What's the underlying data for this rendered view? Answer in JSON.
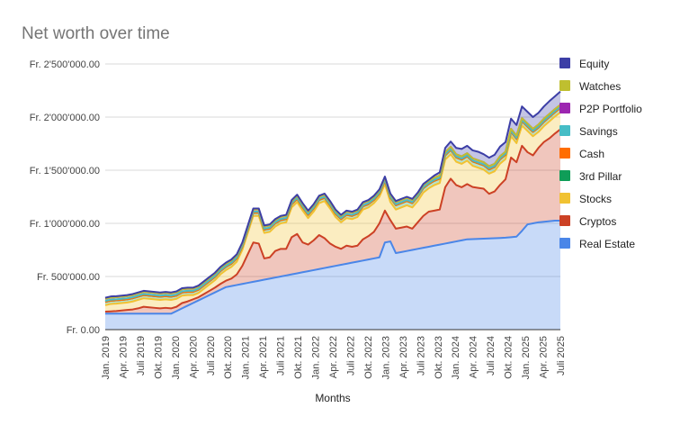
{
  "chart_data": {
    "type": "area",
    "stacked": true,
    "title": "Net worth over time",
    "xlabel": "Months",
    "ylabel": "",
    "ylim": [
      0,
      2500000
    ],
    "y_ticks": [
      {
        "value": 0,
        "label": "Fr. 0.00"
      },
      {
        "value": 500000,
        "label": "Fr. 500'000.00"
      },
      {
        "value": 1000000,
        "label": "Fr. 1'000'000.00"
      },
      {
        "value": 1500000,
        "label": "Fr. 1'500'000.00"
      },
      {
        "value": 2000000,
        "label": "Fr. 2'000'000.00"
      },
      {
        "value": 2500000,
        "label": "Fr. 2'500'000.00"
      }
    ],
    "x_tick_labels": [
      "Jan. 2019",
      "Apr. 2019",
      "Juli 2019",
      "Okt. 2019",
      "Jan. 2020",
      "Apr. 2020",
      "Juli 2020",
      "Okt. 2020",
      "Jan. 2021",
      "Apr. 2021",
      "Juli 2021",
      "Okt. 2021",
      "Jan. 2022",
      "Apr. 2022",
      "Juli 2022",
      "Okt. 2022",
      "Jan. 2023",
      "Apr. 2023",
      "Juli 2023",
      "Okt. 2023",
      "Jan. 2024",
      "Apr. 2024",
      "Juli 2024",
      "Okt. 2024",
      "Jan. 2025",
      "Apr. 2025",
      "Juli 2025"
    ],
    "grid": true,
    "legend_position": "right",
    "series": [
      {
        "name": "Real Estate",
        "color": "#4a86e8",
        "values": [
          150000,
          150000,
          150000,
          150000,
          150000,
          150000,
          150000,
          150000,
          150000,
          150000,
          150000,
          150000,
          150000,
          175000,
          200000,
          225000,
          250000,
          275000,
          300000,
          325000,
          350000,
          375000,
          400000,
          410000,
          420000,
          430000,
          440000,
          450000,
          460000,
          470000,
          480000,
          490000,
          500000,
          510000,
          520000,
          530000,
          540000,
          550000,
          560000,
          570000,
          580000,
          590000,
          600000,
          610000,
          620000,
          630000,
          640000,
          650000,
          660000,
          670000,
          680000,
          820000,
          830000,
          720000,
          730000,
          740000,
          750000,
          760000,
          770000,
          780000,
          790000,
          800000,
          810000,
          820000,
          830000,
          840000,
          850000,
          852000,
          854000,
          856000,
          858000,
          860000,
          862000,
          865000,
          870000,
          875000,
          930000,
          990000,
          1000000,
          1010000,
          1015000,
          1020000,
          1025000,
          1025000
        ]
      },
      {
        "name": "Cryptos",
        "color": "#cc4125",
        "values": [
          20000,
          22000,
          25000,
          30000,
          35000,
          40000,
          50000,
          65000,
          60000,
          55000,
          50000,
          55000,
          50000,
          40000,
          50000,
          40000,
          35000,
          30000,
          35000,
          40000,
          45000,
          55000,
          60000,
          70000,
          100000,
          170000,
          270000,
          370000,
          350000,
          200000,
          200000,
          250000,
          260000,
          250000,
          350000,
          370000,
          280000,
          250000,
          280000,
          320000,
          280000,
          220000,
          180000,
          150000,
          170000,
          150000,
          150000,
          200000,
          220000,
          250000,
          320000,
          300000,
          200000,
          230000,
          230000,
          230000,
          200000,
          250000,
          300000,
          330000,
          330000,
          330000,
          530000,
          600000,
          530000,
          500000,
          520000,
          490000,
          480000,
          470000,
          420000,
          440000,
          500000,
          550000,
          750000,
          700000,
          800000,
          680000,
          640000,
          700000,
          750000,
          780000,
          820000,
          860000
        ]
      },
      {
        "name": "Stocks",
        "color": "#f1c232",
        "values": [
          60000,
          70000,
          70000,
          70000,
          70000,
          75000,
          80000,
          80000,
          80000,
          80000,
          80000,
          80000,
          80000,
          75000,
          70000,
          60000,
          40000,
          40000,
          50000,
          60000,
          70000,
          90000,
          100000,
          110000,
          120000,
          150000,
          200000,
          250000,
          260000,
          240000,
          240000,
          230000,
          240000,
          250000,
          280000,
          300000,
          300000,
          250000,
          270000,
          300000,
          350000,
          330000,
          280000,
          250000,
          260000,
          260000,
          270000,
          280000,
          270000,
          270000,
          250000,
          250000,
          170000,
          180000,
          190000,
          200000,
          200000,
          200000,
          220000,
          220000,
          240000,
          250000,
          260000,
          230000,
          220000,
          220000,
          220000,
          200000,
          190000,
          180000,
          190000,
          190000,
          200000,
          190000,
          200000,
          180000,
          190000,
          200000,
          180000,
          150000,
          150000,
          160000,
          160000,
          160000
        ]
      },
      {
        "name": "3rd Pillar",
        "color": "#0f9d58",
        "values": [
          30000,
          30000,
          30000,
          30000,
          30000,
          30000,
          30000,
          30000,
          30000,
          30000,
          30000,
          30000,
          30000,
          30000,
          30000,
          30000,
          30000,
          30000,
          30000,
          30000,
          30000,
          30000,
          30000,
          30000,
          30000,
          30000,
          30000,
          30000,
          30000,
          30000,
          30000,
          30000,
          30000,
          30000,
          30000,
          30000,
          30000,
          30000,
          30000,
          30000,
          30000,
          30000,
          30000,
          30000,
          30000,
          30000,
          30000,
          30000,
          30000,
          30000,
          30000,
          30000,
          40000,
          40000,
          40000,
          40000,
          40000,
          40000,
          40000,
          40000,
          40000,
          40000,
          40000,
          40000,
          40000,
          40000,
          40000,
          40000,
          40000,
          40000,
          40000,
          40000,
          40000,
          40000,
          40000,
          40000,
          40000,
          40000,
          40000,
          40000,
          40000,
          40000,
          40000,
          40000
        ]
      },
      {
        "name": "Cash",
        "color": "#ff6d01",
        "values": [
          0,
          0,
          0,
          0,
          0,
          0,
          0,
          0,
          0,
          0,
          0,
          0,
          0,
          0,
          0,
          0,
          0,
          0,
          0,
          0,
          0,
          0,
          0,
          0,
          0,
          0,
          0,
          0,
          0,
          0,
          0,
          0,
          0,
          0,
          0,
          0,
          0,
          0,
          0,
          0,
          0,
          0,
          0,
          0,
          0,
          0,
          0,
          0,
          0,
          0,
          0,
          0,
          0,
          0,
          0,
          0,
          0,
          0,
          0,
          0,
          0,
          0,
          0,
          0,
          0,
          0,
          0,
          0,
          0,
          0,
          0,
          0,
          0,
          0,
          0,
          0,
          0,
          0,
          0,
          0,
          0,
          0,
          0,
          0
        ]
      },
      {
        "name": "Savings",
        "color": "#46bdc6",
        "values": [
          10000,
          10000,
          10000,
          10000,
          10000,
          10000,
          10000,
          10000,
          10000,
          10000,
          10000,
          10000,
          10000,
          10000,
          10000,
          10000,
          10000,
          10000,
          10000,
          10000,
          10000,
          10000,
          10000,
          10000,
          10000,
          10000,
          10000,
          10000,
          10000,
          10000,
          10000,
          10000,
          10000,
          10000,
          10000,
          10000,
          10000,
          10000,
          10000,
          10000,
          10000,
          10000,
          10000,
          10000,
          10000,
          10000,
          10000,
          10000,
          10000,
          10000,
          10000,
          10000,
          10000,
          10000,
          10000,
          10000,
          10000,
          10000,
          10000,
          10000,
          10000,
          10000,
          10000,
          10000,
          10000,
          10000,
          10000,
          10000,
          10000,
          10000,
          10000,
          10000,
          10000,
          10000,
          10000,
          10000,
          10000,
          10000,
          10000,
          10000,
          10000,
          10000,
          10000,
          10000
        ]
      },
      {
        "name": "P2P Portfolio",
        "color": "#9c27b0",
        "values": [
          20000,
          20000,
          20000,
          20000,
          20000,
          20000,
          20000,
          20000,
          20000,
          20000,
          20000,
          20000,
          20000,
          20000,
          20000,
          20000,
          20000,
          20000,
          20000,
          20000,
          20000,
          20000,
          20000,
          20000,
          20000,
          20000,
          20000,
          20000,
          20000,
          20000,
          20000,
          20000,
          20000,
          20000,
          20000,
          20000,
          20000,
          20000,
          20000,
          20000,
          20000,
          20000,
          20000,
          20000,
          20000,
          20000,
          20000,
          20000,
          20000,
          20000,
          20000,
          20000,
          20000,
          20000,
          20000,
          20000,
          20000,
          20000,
          20000,
          20000,
          20000,
          20000,
          20000,
          20000,
          20000,
          20000,
          20000,
          20000,
          20000,
          20000,
          20000,
          20000,
          20000,
          20000,
          20000,
          20000,
          20000,
          20000,
          20000,
          20000,
          20000,
          20000,
          20000,
          20000
        ]
      },
      {
        "name": "Watches",
        "color": "#bfbf2f",
        "values": [
          0,
          0,
          0,
          0,
          0,
          0,
          0,
          0,
          0,
          0,
          0,
          0,
          0,
          0,
          0,
          0,
          0,
          0,
          0,
          0,
          0,
          0,
          0,
          0,
          0,
          0,
          0,
          0,
          0,
          0,
          0,
          0,
          0,
          0,
          0,
          0,
          0,
          0,
          0,
          0,
          0,
          0,
          0,
          0,
          0,
          0,
          0,
          0,
          0,
          0,
          0,
          0,
          0,
          0,
          0,
          0,
          0,
          0,
          0,
          0,
          0,
          0,
          0,
          0,
          0,
          0,
          0,
          0,
          0,
          0,
          0,
          0,
          0,
          0,
          0,
          0,
          0,
          0,
          0,
          0,
          0,
          0,
          0,
          0
        ]
      },
      {
        "name": "Equity",
        "color": "#3c3ea6",
        "values": [
          10000,
          10000,
          10000,
          10000,
          10000,
          10000,
          10000,
          10000,
          10000,
          10000,
          10000,
          10000,
          10000,
          10000,
          10000,
          10000,
          10000,
          10000,
          10000,
          10000,
          10000,
          10000,
          10000,
          10000,
          10000,
          10000,
          10000,
          10000,
          10000,
          10000,
          10000,
          10000,
          10000,
          10000,
          10000,
          10000,
          10000,
          10000,
          10000,
          10000,
          10000,
          10000,
          10000,
          10000,
          10000,
          10000,
          10000,
          10000,
          10000,
          10000,
          10000,
          10000,
          10000,
          10000,
          10000,
          10000,
          10000,
          10000,
          10000,
          10000,
          20000,
          30000,
          40000,
          50000,
          60000,
          70000,
          70000,
          75000,
          80000,
          75000,
          80000,
          85000,
          90000,
          90000,
          95000,
          100000,
          110000,
          110000,
          110000,
          110000,
          115000,
          120000,
          120000,
          125000
        ]
      }
    ],
    "legend_order": [
      "Equity",
      "Watches",
      "P2P Portfolio",
      "Savings",
      "Cash",
      "3rd Pillar",
      "Stocks",
      "Cryptos",
      "Real Estate"
    ]
  }
}
